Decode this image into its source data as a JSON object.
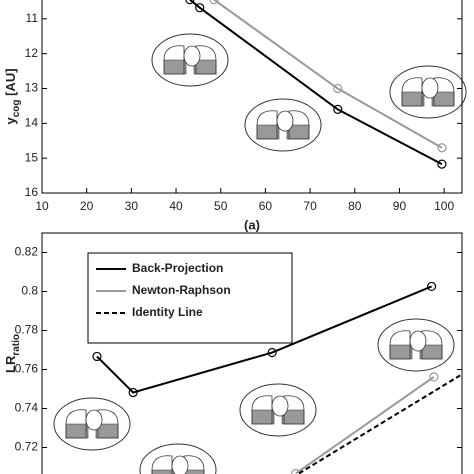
{
  "chart_data": [
    {
      "type": "line",
      "y_label": "y",
      "y_label_sub": "cog",
      "y_label_unit": "[AU]",
      "caption": "(a)",
      "xlim": [
        10,
        104
      ],
      "ylim": [
        10,
        16
      ],
      "y_inverted": true,
      "xticks": [
        10,
        20,
        30,
        40,
        50,
        60,
        70,
        80,
        90,
        100
      ],
      "yticks": [
        11,
        12,
        13,
        14,
        15,
        16
      ],
      "series": [
        {
          "color": "#000000",
          "dashed": false,
          "markers": true,
          "x": [
            43.1,
            45.3,
            76.2,
            99.5
          ],
          "values": [
            10.45,
            10.68,
            13.6,
            15.17
          ]
        },
        {
          "color": "#999999",
          "dashed": false,
          "markers": true,
          "x": [
            48.5,
            76.2,
            99.5
          ],
          "values": [
            10.45,
            13.0,
            14.7
          ]
        }
      ]
    },
    {
      "type": "line",
      "y_label": "LR",
      "y_label_sub": "ratio",
      "xlim": [
        10,
        104
      ],
      "ylim": [
        0.7,
        0.83
      ],
      "y_inverted": false,
      "yticks": [
        0.72,
        0.74,
        0.76,
        0.78,
        0.8,
        0.82
      ],
      "legend": "upper left",
      "series": [
        {
          "name": "Back-Projection",
          "color": "#000000",
          "dashed": false,
          "markers": true,
          "x": [
            22.3,
            30.4,
            61.5,
            97.2
          ],
          "values": [
            0.7667,
            0.7482,
            0.7687,
            0.8026
          ]
        },
        {
          "name": "Newton-Raphson",
          "color": "#999999",
          "dashed": false,
          "markers": true,
          "x": [
            66.8,
            97.7
          ],
          "values": [
            0.7067,
            0.7562
          ]
        },
        {
          "name": "Identity Line",
          "color": "#000000",
          "dashed": true,
          "markers": false,
          "x": [
            67.5,
            103.6
          ],
          "values": [
            0.7067,
            0.757
          ]
        }
      ]
    }
  ]
}
